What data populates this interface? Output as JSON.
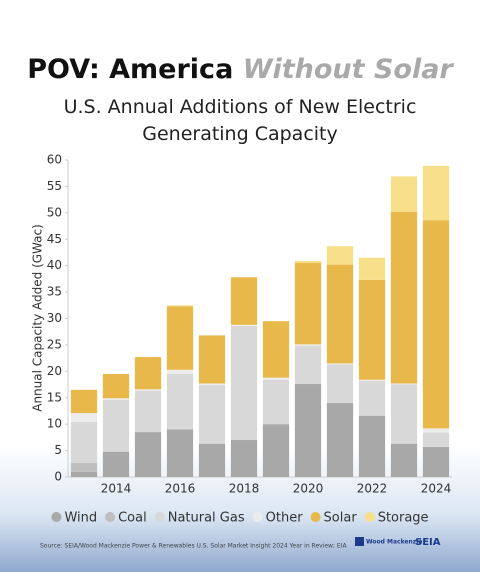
{
  "chart_data": {
    "type": "stacked_bar",
    "title": [
      "POV: America",
      "Without Solar"
    ],
    "subtitle": "U.S. Annual Additions of New Electric Generating Capacity",
    "y_label": "Annual Capacity Added (GWac)",
    "source": "Source: SEIA/Wood Mackenzie Power & Renewables U.S. Solar Market Insight 2024 Year in Review; EIA",
    "logos": [
      "Wood Mackenzie",
      "SEIA"
    ],
    "categories": [
      null,
      "2014",
      null,
      "2016",
      null,
      "2018",
      null,
      "2020",
      null,
      "2022",
      null,
      "2024"
    ],
    "ylim": [
      0,
      60
    ],
    "yticks": [
      0,
      5,
      10,
      15,
      20,
      25,
      30,
      35,
      40,
      45,
      50,
      55,
      60
    ],
    "grid": false,
    "series": [
      {
        "name": "Wind",
        "color": "#a8a8a8",
        "values": [
          1,
          4.8,
          8.5,
          9,
          6.3,
          7,
          10,
          17.6,
          14,
          11.6,
          6.3,
          5.7
        ]
      },
      {
        "name": "Coal",
        "color": "#bfbfbf",
        "values": [
          1.7,
          0,
          0,
          0,
          0,
          0,
          0,
          0,
          0,
          0,
          0,
          0
        ]
      },
      {
        "name": "Natural Gas",
        "color": "#d8d8d8",
        "values": [
          7.7,
          9.8,
          7.8,
          10.5,
          11.1,
          21.6,
          8.4,
          7.2,
          7.3,
          6.6,
          11.2,
          2.7
        ]
      },
      {
        "name": "Other",
        "color": "#ececec",
        "values": [
          1.7,
          0.3,
          0.3,
          0.8,
          0.3,
          0.2,
          0.4,
          0.3,
          0.2,
          0.2,
          0.2,
          0.8
        ]
      },
      {
        "name": "Solar",
        "color": "#e8b84a",
        "values": [
          4.4,
          4.6,
          6.1,
          12,
          9.1,
          9,
          10.7,
          15.4,
          18.7,
          18.9,
          32.5,
          39.4
        ]
      },
      {
        "name": "Storage",
        "color": "#f7df8a",
        "values": [
          0,
          0,
          0,
          0.2,
          0,
          0,
          0,
          0.4,
          3.5,
          4.2,
          6.7,
          10.3
        ]
      }
    ]
  }
}
